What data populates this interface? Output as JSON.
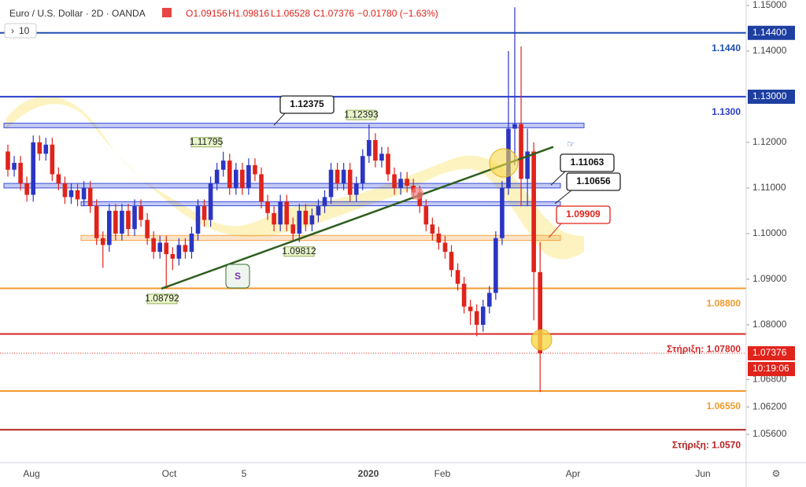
{
  "chart_data": {
    "type": "candlestick",
    "title": "Euro / U.S. Dollar · 2D · OANDA",
    "legend_values": [
      "O1.09156",
      "H1.09816",
      "L1.06528",
      "C1.07376",
      "−0.01780 (−1.63%)"
    ],
    "interval": "10",
    "up_color": "#2b35c4",
    "down_color": "#e0231b",
    "open": [
      1.118,
      1.114,
      1.1155,
      1.111,
      1.1085,
      1.12,
      1.1175,
      1.1195,
      1.113,
      1.111,
      1.108,
      1.1095,
      1.1075,
      1.11,
      1.106,
      1.099,
      1.0975,
      1.105,
      1.1,
      1.105,
      1.101,
      1.106,
      1.103,
      1.099,
      1.096,
      1.098,
      1.0955,
      1.0945,
      1.0975,
      1.096,
      1.1,
      1.106,
      1.103,
      1.111,
      1.114,
      1.116,
      1.11,
      1.114,
      1.11,
      1.115,
      1.113,
      1.107,
      1.1045,
      1.102,
      1.107,
      1.102,
      1.1,
      1.105,
      1.102,
      1.104,
      1.106,
      1.108,
      1.114,
      1.111,
      1.114,
      1.1085,
      1.111,
      1.117,
      1.1205,
      1.116,
      1.1175,
      1.113,
      1.11,
      1.112,
      1.1105,
      1.109,
      1.106,
      1.102,
      1.1,
      1.098,
      1.096,
      1.092,
      1.089,
      1.084,
      1.083,
      1.08,
      1.084,
      1.087,
      1.099,
      1.11,
      1.123,
      1.124,
      1.112,
      1.118,
      1.09156
    ],
    "high": [
      1.1195,
      1.117,
      1.117,
      1.1125,
      1.1215,
      1.1215,
      1.121,
      1.121,
      1.1145,
      1.1125,
      1.111,
      1.111,
      1.1115,
      1.1115,
      1.1075,
      1.1005,
      1.1065,
      1.1065,
      1.1065,
      1.1065,
      1.1075,
      1.1075,
      1.1045,
      1.1005,
      1.0995,
      1.0995,
      1.097,
      1.099,
      1.099,
      1.1015,
      1.1075,
      1.1075,
      1.1125,
      1.1155,
      1.11795,
      1.1175,
      1.1155,
      1.1155,
      1.1165,
      1.1165,
      1.1145,
      1.1085,
      1.106,
      1.1085,
      1.1085,
      1.1035,
      1.1065,
      1.1065,
      1.1055,
      1.1075,
      1.1095,
      1.1155,
      1.1155,
      1.1155,
      1.1155,
      1.1125,
      1.1185,
      1.12393,
      1.122,
      1.119,
      1.119,
      1.1145,
      1.1135,
      1.1135,
      1.112,
      1.1105,
      1.1075,
      1.1035,
      1.1015,
      1.0995,
      1.0975,
      1.0935,
      1.0905,
      1.0855,
      1.0845,
      1.0855,
      1.0885,
      1.1005,
      1.1115,
      1.14,
      1.1496,
      1.141,
      1.123,
      1.12,
      1.09816
    ],
    "low": [
      1.1125,
      1.1125,
      1.1095,
      1.107,
      1.107,
      1.116,
      1.116,
      1.1115,
      1.1095,
      1.1065,
      1.1065,
      1.106,
      1.106,
      1.1045,
      1.0975,
      1.0925,
      1.096,
      1.0985,
      1.0985,
      1.0995,
      1.0995,
      1.1015,
      1.0975,
      1.0945,
      1.0945,
      1.08792,
      1.092,
      1.093,
      1.0945,
      1.0945,
      1.0985,
      1.1015,
      1.1015,
      1.1095,
      1.1125,
      1.1085,
      1.1085,
      1.1085,
      1.1085,
      1.1115,
      1.1055,
      1.103,
      1.1005,
      1.1005,
      1.1005,
      1.0985,
      1.09812,
      1.1005,
      1.1005,
      1.1025,
      1.1045,
      1.1065,
      1.1095,
      1.1095,
      1.107,
      1.107,
      1.1095,
      1.1155,
      1.1145,
      1.1145,
      1.1115,
      1.1085,
      1.1085,
      1.109,
      1.1075,
      1.1045,
      1.1005,
      1.0985,
      1.0965,
      1.0945,
      1.0905,
      1.0875,
      1.0825,
      1.08,
      1.0775,
      1.0785,
      1.0825,
      1.0855,
      1.0975,
      1.1085,
      1.115,
      1.106,
      1.106,
      1.081,
      1.06528
    ],
    "close": [
      1.114,
      1.1155,
      1.111,
      1.1085,
      1.12,
      1.1175,
      1.1195,
      1.113,
      1.111,
      1.108,
      1.1095,
      1.1075,
      1.11,
      1.106,
      1.099,
      1.0975,
      1.105,
      1.1,
      1.105,
      1.101,
      1.106,
      1.103,
      1.099,
      1.096,
      1.098,
      1.0955,
      1.0945,
      1.0975,
      1.096,
      1.1,
      1.106,
      1.103,
      1.111,
      1.114,
      1.116,
      1.11,
      1.114,
      1.11,
      1.115,
      1.113,
      1.107,
      1.1045,
      1.102,
      1.107,
      1.102,
      1.1,
      1.105,
      1.102,
      1.104,
      1.106,
      1.108,
      1.114,
      1.111,
      1.114,
      1.1085,
      1.111,
      1.117,
      1.1205,
      1.116,
      1.1175,
      1.113,
      1.11,
      1.112,
      1.1105,
      1.109,
      1.106,
      1.102,
      1.1,
      1.098,
      1.096,
      1.092,
      1.089,
      1.084,
      1.083,
      1.08,
      1.084,
      1.087,
      1.099,
      1.11,
      1.123,
      1.124,
      1.112,
      1.118,
      1.09156,
      1.07376
    ],
    "ylim": [
      1.0498,
      1.1512
    ],
    "yticks": [
      {
        "value": 1.15,
        "label": "1.15000"
      },
      {
        "value": 1.14,
        "label": "1.14000"
      },
      {
        "value": 1.12,
        "label": "1.12000"
      },
      {
        "value": 1.11,
        "label": "1.11000"
      },
      {
        "value": 1.1,
        "label": "1.10000"
      },
      {
        "value": 1.09,
        "label": "1.09000"
      },
      {
        "value": 1.08,
        "label": "1.08000"
      },
      {
        "value": 1.068,
        "label": "1.06800"
      },
      {
        "value": 1.062,
        "label": "1.06200"
      },
      {
        "value": 1.056,
        "label": "1.05600"
      }
    ],
    "price_labels": [
      {
        "value": 1.144,
        "label": "1.14400",
        "color": "#1e3fa0"
      },
      {
        "value": 1.13,
        "label": "1.13000",
        "color": "#1e3fa0"
      },
      {
        "value": 1.07376,
        "label": "1.07376",
        "color": "#e0231b"
      }
    ],
    "countdown": "10:19:06",
    "x_labels": [
      "Aug",
      "Oct",
      "5",
      "2020",
      "Feb",
      "Apr",
      "Jun"
    ],
    "levels": [
      {
        "value": 1.144,
        "label": "1.1440",
        "color": "#1e4fb0"
      },
      {
        "value": 1.13,
        "label": "1.1300",
        "color": "#2a3fc8"
      },
      {
        "value": 1.088,
        "label": "1.08800",
        "color": "#f29a2e"
      },
      {
        "value": 1.078,
        "label": "Στήριξη: 1.07800",
        "color": "#d62728"
      },
      {
        "value": 1.0655,
        "label": "1.06550",
        "color": "#f29a2e"
      },
      {
        "value": 1.057,
        "label": "Στήριξη: 1.0570",
        "color": "#b22222"
      }
    ],
    "zones": [
      {
        "high": 1.1242,
        "low": 1.1232,
        "color": "#3b4fd8"
      },
      {
        "high": 1.111,
        "low": 1.11,
        "color": "#3b4fd8"
      },
      {
        "high": 1.107,
        "low": 1.1061,
        "color": "#3b4fd8"
      },
      {
        "high": 1.0996,
        "low": 1.0985,
        "color": "#f2a64a"
      }
    ],
    "callouts": [
      {
        "value": 1.12375,
        "label": "1.12375"
      },
      {
        "value": 1.11063,
        "label": "1.11063"
      },
      {
        "value": 1.10656,
        "label": "1.10656"
      },
      {
        "value": 1.09909,
        "label": "1.09909"
      }
    ],
    "point_labels": [
      {
        "value": 1.12393,
        "label": "1.12393"
      },
      {
        "value": 1.11795,
        "label": "1.11795"
      },
      {
        "value": 1.09812,
        "label": "1.09812"
      },
      {
        "value": 1.08792,
        "label": "1.08792"
      }
    ],
    "trendline": [
      1.08792,
      1.119
    ],
    "badge": "S"
  }
}
